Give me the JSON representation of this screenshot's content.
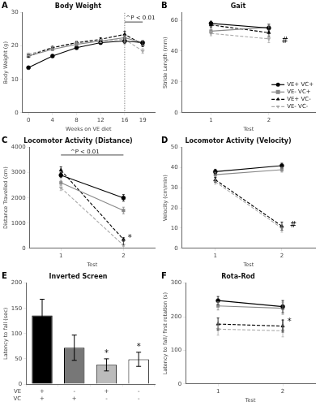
{
  "chart_data": [
    {
      "type": "line",
      "panel_label": "A",
      "title": "Body Weight",
      "xlabel": "Weeks on VE diet",
      "ylabel": "Body Weight (g)",
      "xlim": [
        -1,
        21
      ],
      "ylim": [
        0,
        30
      ],
      "xticks": [
        0,
        4,
        8,
        12,
        16,
        19
      ],
      "yticks": [
        0,
        10,
        20,
        30
      ],
      "grid": false,
      "x": [
        0,
        4,
        8,
        12,
        16,
        19
      ],
      "series": [
        {
          "name": "VE+ VC+",
          "color": "black",
          "line_style": "solid",
          "marker": "circle",
          "values": [
            13.5,
            17.0,
            19.5,
            21.0,
            21.5,
            21.0
          ],
          "err": [
            0.3,
            0.4,
            0.5,
            0.5,
            0.8,
            0.6
          ]
        },
        {
          "name": "VE- VC+",
          "color": "#888888",
          "line_style": "solid",
          "marker": "square",
          "values": [
            17.0,
            19.0,
            20.5,
            21.5,
            22.5,
            21.0
          ],
          "err": [
            0.4,
            0.4,
            0.5,
            0.5,
            0.6,
            0.6
          ]
        },
        {
          "name": "VE+ VC-",
          "color": "black",
          "line_style": "dashed",
          "marker": "triangle",
          "values": [
            17.0,
            19.5,
            21.0,
            22.0,
            23.5,
            20.5
          ],
          "err": [
            0.4,
            0.4,
            0.5,
            0.5,
            0.9,
            0.7
          ]
        },
        {
          "name": "VE- VC-",
          "color": "#aaaaaa",
          "line_style": "dashed",
          "marker": "triangle_down",
          "values": [
            17.5,
            19.5,
            21.0,
            21.5,
            22.0,
            18.5
          ],
          "err": [
            0.4,
            0.4,
            0.5,
            0.5,
            0.7,
            0.7
          ]
        }
      ],
      "vline_x": 16,
      "segments": [
        {
          "x": [
            16,
            19
          ],
          "y": [
            27.2,
            27.2
          ]
        }
      ],
      "annotations": [
        {
          "text": "^P < 0.01",
          "x": 16.2,
          "y": 27.5
        }
      ]
    },
    {
      "type": "line",
      "panel_label": "B",
      "title": "Gait",
      "xlabel": "Test",
      "ylabel": "Stride Length (mm)",
      "xlim": [
        0.5,
        2.8
      ],
      "ylim": [
        0,
        65
      ],
      "xticks": [
        1,
        2
      ],
      "yticks": [
        0,
        20,
        40,
        60
      ],
      "grid": false,
      "legend": "lower right",
      "x": [
        1,
        2
      ],
      "series": [
        {
          "name": "VE+ VC+",
          "color": "black",
          "line_style": "solid",
          "marker": "circle",
          "values": [
            58.0,
            55.0
          ],
          "err": [
            1.5,
            2.5
          ]
        },
        {
          "name": "VE- VC+",
          "color": "#888888",
          "line_style": "solid",
          "marker": "square",
          "values": [
            53.0,
            55.5
          ],
          "err": [
            1.5,
            2.0
          ]
        },
        {
          "name": "VE+ VC-",
          "color": "black",
          "line_style": "dashed",
          "marker": "triangle",
          "values": [
            57.0,
            52.0
          ],
          "err": [
            1.5,
            2.5
          ]
        },
        {
          "name": "VE- VC-",
          "color": "#aaaaaa",
          "line_style": "dashed",
          "marker": "triangle_down",
          "values": [
            51.5,
            48.0
          ],
          "err": [
            1.5,
            2.5
          ]
        }
      ],
      "annotations": [
        {
          "text": "#",
          "x": 2.22,
          "y": 44
        }
      ]
    },
    {
      "type": "line",
      "panel_label": "C",
      "title": "Locomotor Activity (Distance)",
      "xlabel": "Test",
      "ylabel": "Distance Travelled (cm)",
      "xlim": [
        0.5,
        2.5
      ],
      "ylim": [
        0,
        4000
      ],
      "xticks": [
        1,
        2
      ],
      "yticks": [
        0,
        1000,
        2000,
        3000,
        4000
      ],
      "grid": false,
      "x": [
        1,
        2
      ],
      "series": [
        {
          "name": "VE+ VC+",
          "color": "black",
          "line_style": "solid",
          "marker": "circle",
          "values": [
            2900,
            2000
          ],
          "err": [
            100,
            130
          ]
        },
        {
          "name": "VE- VC+",
          "color": "#888888",
          "line_style": "solid",
          "marker": "square",
          "values": [
            2600,
            1500
          ],
          "err": [
            100,
            130
          ]
        },
        {
          "name": "VE+ VC-",
          "color": "black",
          "line_style": "dashed",
          "marker": "triangle",
          "values": [
            3100,
            350
          ],
          "err": [
            130,
            70
          ]
        },
        {
          "name": "VE- VC-",
          "color": "#aaaaaa",
          "line_style": "dashed",
          "marker": "triangle_down",
          "values": [
            2400,
            120
          ],
          "err": [
            110,
            40
          ]
        }
      ],
      "segments": [
        {
          "x": [
            1.0,
            2.0
          ],
          "y": [
            3700,
            3700
          ]
        },
        {
          "x": [
            2.0,
            2.0
          ],
          "y": [
            120,
            380
          ]
        }
      ],
      "annotations": [
        {
          "text": "^P < 0.01",
          "x": 1.15,
          "y": 3720
        },
        {
          "text": "*",
          "x": 2.07,
          "y": 230
        }
      ]
    },
    {
      "type": "line",
      "panel_label": "D",
      "title": "Locomotor Activity (Velocity)",
      "xlabel": "Test",
      "ylabel": "Velocity (cm/min)",
      "xlim": [
        0.5,
        2.5
      ],
      "ylim": [
        0,
        50
      ],
      "xticks": [
        1,
        2
      ],
      "yticks": [
        0,
        10,
        20,
        30,
        40,
        50
      ],
      "grid": false,
      "x": [
        1,
        2
      ],
      "series": [
        {
          "name": "VE+ VC+",
          "color": "black",
          "line_style": "solid",
          "marker": "circle",
          "values": [
            38.0,
            41.0
          ],
          "err": [
            1.2,
            1.2
          ]
        },
        {
          "name": "VE- VC+",
          "color": "#888888",
          "line_style": "solid",
          "marker": "square",
          "values": [
            36.5,
            39.0
          ],
          "err": [
            1.2,
            1.2
          ]
        },
        {
          "name": "VE+ VC-",
          "color": "black",
          "line_style": "dashed",
          "marker": "triangle",
          "values": [
            34.0,
            11.0
          ],
          "err": [
            1.2,
            2.0
          ]
        },
        {
          "name": "VE- VC-",
          "color": "#aaaaaa",
          "line_style": "dashed",
          "marker": "triangle_down",
          "values": [
            33.0,
            10.0
          ],
          "err": [
            1.2,
            2.0
          ]
        }
      ],
      "annotations": [
        {
          "text": "#",
          "x": 2.12,
          "y": 9.5
        }
      ]
    },
    {
      "type": "bar",
      "panel_label": "E",
      "title": "Inverted Screen",
      "ylabel": "Latency to fall (sec)",
      "ylim": [
        0,
        200
      ],
      "yticks": [
        0,
        50,
        100,
        150,
        200
      ],
      "grid": false,
      "categories": [
        null,
        null,
        null,
        null
      ],
      "values": [
        136,
        72,
        38,
        49
      ],
      "err": [
        32,
        25,
        12,
        14
      ],
      "colors": [
        "black",
        "#777777",
        "#bbbbbb",
        "white"
      ],
      "stars": [
        null,
        null,
        "*",
        "*"
      ],
      "tick_rows": [
        {
          "label": "VE",
          "values": [
            "+",
            "-",
            "+",
            "-"
          ]
        },
        {
          "label": "VC",
          "values": [
            "+",
            "+",
            "-",
            "-"
          ]
        }
      ]
    },
    {
      "type": "line",
      "panel_label": "F",
      "title": "Rota-Rod",
      "xlabel": "Test",
      "ylabel": "Latency to fall/ first rotation (s)",
      "xlim": [
        0.5,
        2.5
      ],
      "ylim": [
        0,
        300
      ],
      "xticks": [
        1,
        2
      ],
      "yticks": [
        0,
        100,
        200,
        300
      ],
      "grid": false,
      "x": [
        1,
        2
      ],
      "series": [
        {
          "name": "VE+ VC+",
          "color": "black",
          "line_style": "solid",
          "marker": "circle",
          "values": [
            248,
            230
          ],
          "err": [
            12,
            18
          ]
        },
        {
          "name": "VE- VC+",
          "color": "#888888",
          "line_style": "solid",
          "marker": "square",
          "values": [
            232,
            225
          ],
          "err": [
            12,
            18
          ]
        },
        {
          "name": "VE+ VC-",
          "color": "black",
          "line_style": "dashed",
          "marker": "triangle",
          "values": [
            178,
            172
          ],
          "err": [
            18,
            18
          ]
        },
        {
          "name": "VE- VC-",
          "color": "#aaaaaa",
          "line_style": "dashed",
          "marker": "triangle_down",
          "values": [
            163,
            158
          ],
          "err": [
            18,
            18
          ]
        }
      ],
      "segments": [
        {
          "x": [
            2.0,
            2.0
          ],
          "y": [
            157,
            193
          ]
        }
      ],
      "annotations": [
        {
          "text": "*",
          "x": 2.07,
          "y": 172
        }
      ]
    }
  ]
}
